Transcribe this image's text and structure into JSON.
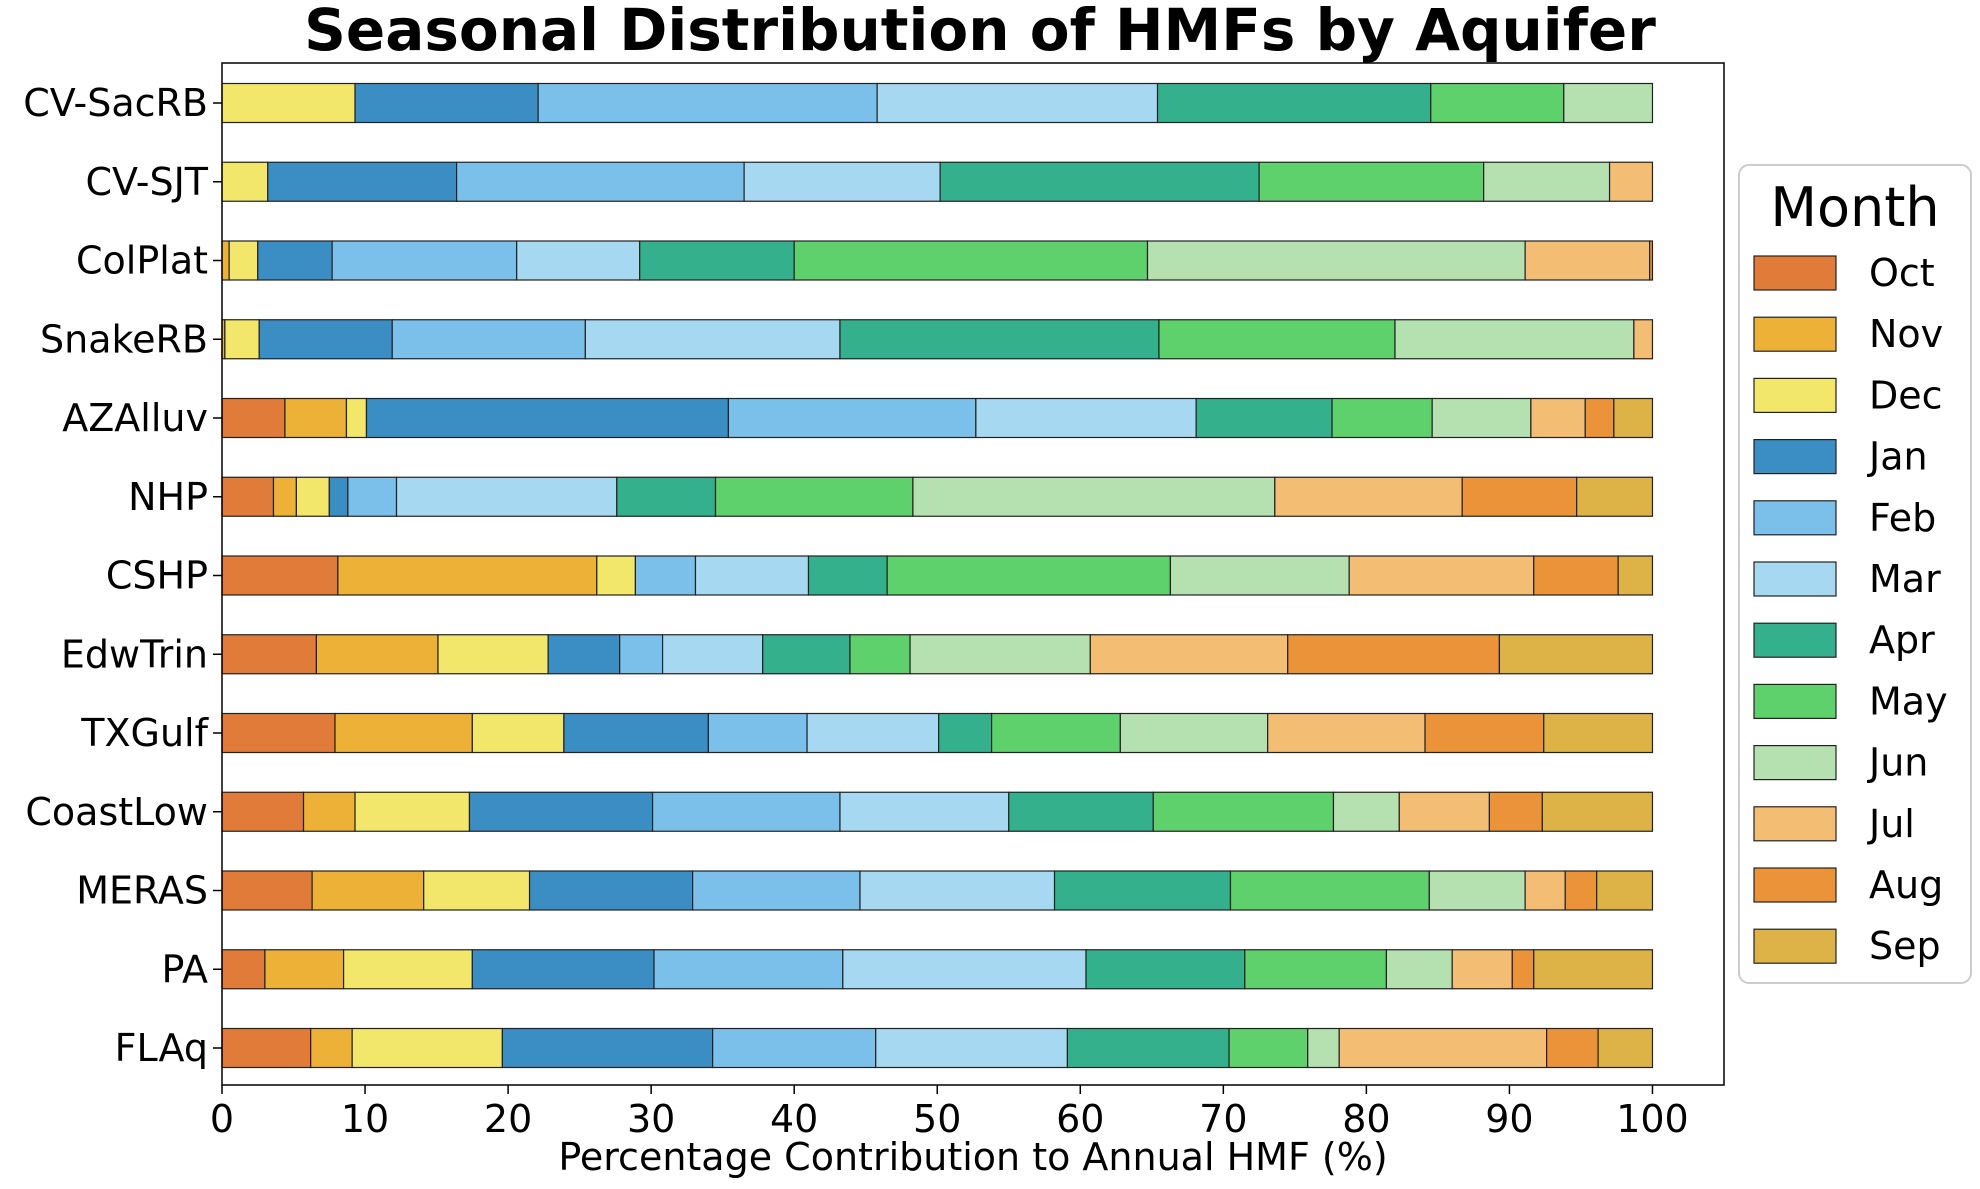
{
  "chart_data": {
    "type": "bar",
    "orientation": "horizontal",
    "stacked": true,
    "title": "Seasonal Distribution of HMFs by Aquifer",
    "xlabel": "Percentage Contribution to Annual HMF (%)",
    "ylabel": "",
    "xlim": [
      0,
      105
    ],
    "xticks": [
      0,
      10,
      20,
      30,
      40,
      50,
      60,
      70,
      80,
      90,
      100
    ],
    "grid": false,
    "legend_title": "Month",
    "legend_position": "right",
    "categories": [
      "CV-SacRB",
      "CV-SJT",
      "ColPlat",
      "SnakeRB",
      "AZAlluv",
      "NHP",
      "CSHP",
      "EdwTrin",
      "TXGulf",
      "CoastLow",
      "MERAS",
      "PA",
      "FLAq"
    ],
    "series": [
      {
        "name": "Oct",
        "color": "#e07b39",
        "values": [
          0.0,
          0.0,
          0.0,
          0.0,
          4.4,
          3.6,
          8.1,
          6.6,
          7.9,
          5.7,
          6.3,
          3.0,
          6.2
        ]
      },
      {
        "name": "Nov",
        "color": "#ecb136",
        "values": [
          0.0,
          0.0,
          0.5,
          0.2,
          4.3,
          1.6,
          18.1,
          8.5,
          9.6,
          3.6,
          7.8,
          5.5,
          2.9
        ]
      },
      {
        "name": "Dec",
        "color": "#f2e66b",
        "values": [
          9.3,
          3.2,
          2.0,
          2.4,
          1.4,
          2.3,
          2.7,
          7.7,
          6.4,
          8.0,
          7.4,
          9.0,
          10.5
        ]
      },
      {
        "name": "Jan",
        "color": "#3a8ec4",
        "values": [
          12.8,
          13.2,
          5.2,
          9.3,
          25.3,
          1.3,
          0.0,
          5.0,
          10.1,
          12.8,
          11.4,
          12.7,
          14.7
        ]
      },
      {
        "name": "Feb",
        "color": "#7bc0eb",
        "values": [
          23.7,
          20.1,
          12.9,
          13.5,
          17.3,
          3.4,
          4.2,
          3.0,
          6.9,
          13.1,
          11.7,
          13.2,
          11.4
        ]
      },
      {
        "name": "Mar",
        "color": "#a6d8f2",
        "values": [
          19.6,
          13.7,
          8.6,
          17.8,
          15.4,
          15.4,
          7.9,
          7.0,
          9.2,
          11.8,
          13.6,
          17.0,
          13.4
        ]
      },
      {
        "name": "Apr",
        "color": "#34b08c",
        "values": [
          19.1,
          22.3,
          10.8,
          22.3,
          9.5,
          6.9,
          5.5,
          6.1,
          3.7,
          10.1,
          12.3,
          11.1,
          11.3
        ]
      },
      {
        "name": "May",
        "color": "#5ed06c",
        "values": [
          9.3,
          15.7,
          24.7,
          16.5,
          7.0,
          13.8,
          19.8,
          4.2,
          9.0,
          12.6,
          13.9,
          9.9,
          5.5
        ]
      },
      {
        "name": "Jun",
        "color": "#b5e1b0",
        "values": [
          6.2,
          8.8,
          26.4,
          16.7,
          6.9,
          25.3,
          12.5,
          12.6,
          10.3,
          4.6,
          6.7,
          4.6,
          2.2
        ]
      },
      {
        "name": "Jul",
        "color": "#f4bd74",
        "values": [
          0.0,
          3.0,
          8.7,
          1.3,
          3.8,
          13.1,
          12.9,
          13.8,
          11.0,
          6.3,
          2.8,
          4.2,
          14.5
        ]
      },
      {
        "name": "Aug",
        "color": "#ea9338",
        "values": [
          0.0,
          0.0,
          0.2,
          0.0,
          2.0,
          8.0,
          5.9,
          14.8,
          8.3,
          3.7,
          2.2,
          1.5,
          3.6
        ]
      },
      {
        "name": "Sep",
        "color": "#ddb347",
        "values": [
          0.0,
          0.0,
          0.0,
          0.0,
          2.7,
          5.3,
          2.4,
          10.7,
          7.6,
          7.7,
          3.9,
          8.3,
          3.8
        ]
      }
    ]
  }
}
